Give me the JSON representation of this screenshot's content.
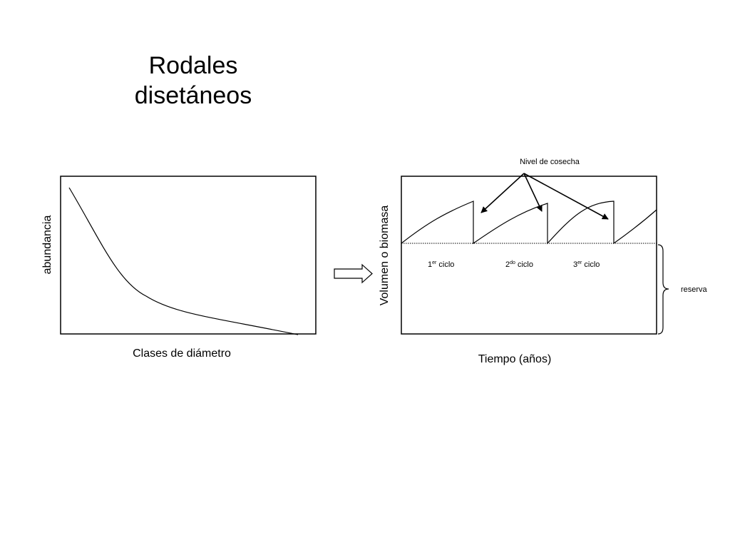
{
  "title": {
    "line1": "Rodales",
    "line2": "disetáneos"
  },
  "left_chart": {
    "ylabel": "abundancia",
    "xlabel": "Clases de diámetro"
  },
  "right_chart": {
    "ylabel": "Volumen o biomasa",
    "xlabel": "Tiempo (años)",
    "annotation": "Nivel de cosecha",
    "cycles": [
      {
        "number": "1",
        "suffix": "er",
        "word": "ciclo"
      },
      {
        "number": "2",
        "suffix": "do",
        "word": "ciclo"
      },
      {
        "number": "3",
        "suffix": "er",
        "word": "ciclo"
      }
    ],
    "reserve_label": "reserva"
  },
  "colors": {
    "line": "#000000",
    "background": "#ffffff"
  }
}
